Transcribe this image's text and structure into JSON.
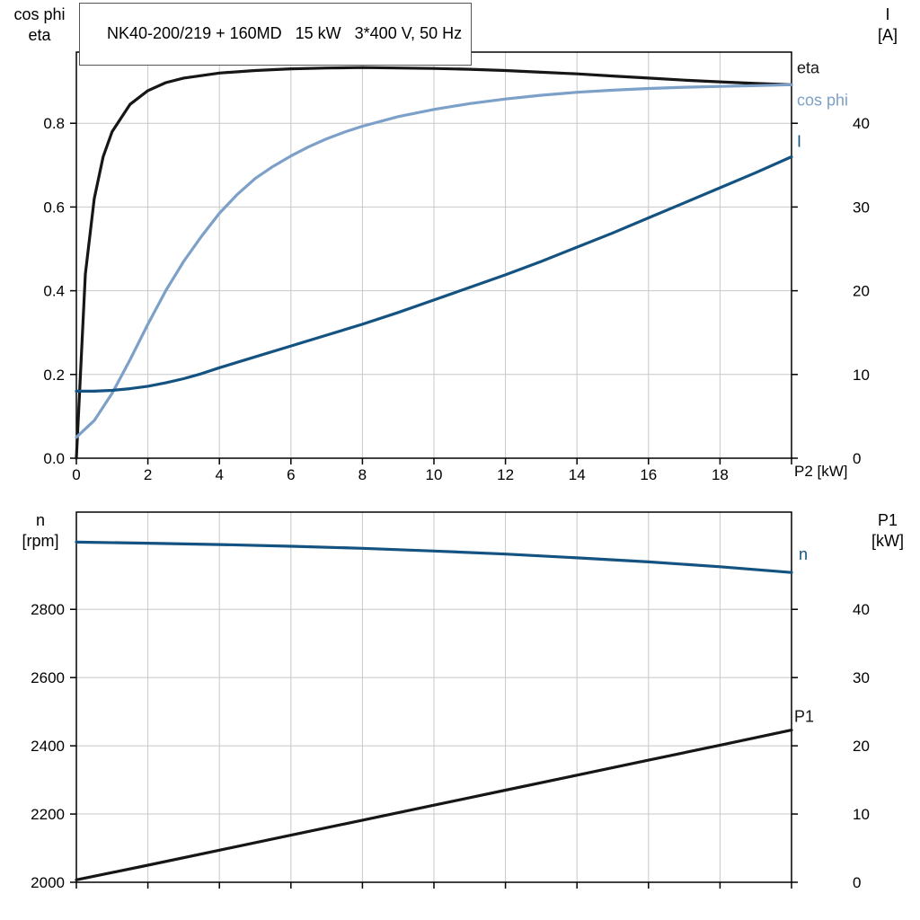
{
  "title": "NK40-200/219 + 160MD   15 kW   3*400 V, 50 Hz",
  "colors": {
    "grid": "#c8c8c8",
    "axis": "#000000",
    "black_curve": "#161616",
    "light_blue": "#7ca0c8",
    "dark_blue": "#145381"
  },
  "chart_data": [
    {
      "type": "line",
      "name": "motor-electrical",
      "x_axis": {
        "label": "P2 [kW]",
        "min": 0,
        "max": 20,
        "ticks": [
          {
            "v": 0,
            "label": "0"
          },
          {
            "v": 2,
            "label": "2"
          },
          {
            "v": 4,
            "label": "4"
          },
          {
            "v": 6,
            "label": "6"
          },
          {
            "v": 8,
            "label": "8"
          },
          {
            "v": 10,
            "label": "10"
          },
          {
            "v": 12,
            "label": "12"
          },
          {
            "v": 14,
            "label": "14"
          },
          {
            "v": 16,
            "label": "16"
          },
          {
            "v": 18,
            "label": "18"
          }
        ]
      },
      "y_left": {
        "name_lines": [
          "cos phi",
          "eta"
        ],
        "min": 0,
        "max": 0.97,
        "ticks": [
          {
            "v": 0,
            "label": "0.0"
          },
          {
            "v": 0.2,
            "label": "0.2"
          },
          {
            "v": 0.4,
            "label": "0.4"
          },
          {
            "v": 0.6,
            "label": "0.6"
          },
          {
            "v": 0.8,
            "label": "0.8"
          }
        ]
      },
      "y_right": {
        "name_lines": [
          "I",
          "[A]"
        ],
        "min": 0,
        "max": 48.5,
        "ticks": [
          {
            "v": 0,
            "label": "0"
          },
          {
            "v": 10,
            "label": "10"
          },
          {
            "v": 20,
            "label": "20"
          },
          {
            "v": 30,
            "label": "30"
          },
          {
            "v": 40,
            "label": "40"
          }
        ]
      },
      "series": [
        {
          "key": "eta",
          "label": "eta",
          "axis": "left",
          "color": "#161616",
          "label_offset": [
            6,
            -13
          ],
          "x": [
            0,
            0.25,
            0.5,
            0.75,
            1,
            1.5,
            2,
            2.5,
            3,
            4,
            5,
            6,
            7,
            8,
            9,
            10,
            11,
            12,
            13,
            14,
            15,
            16,
            17,
            18,
            19,
            20
          ],
          "y": [
            0,
            0.44,
            0.62,
            0.72,
            0.78,
            0.845,
            0.878,
            0.897,
            0.908,
            0.92,
            0.926,
            0.93,
            0.932,
            0.933,
            0.932,
            0.931,
            0.929,
            0.926,
            0.922,
            0.918,
            0.913,
            0.908,
            0.903,
            0.899,
            0.895,
            0.892
          ]
        },
        {
          "key": "cos-phi",
          "label": "cos phi",
          "axis": "left",
          "color": "#7ca0c8",
          "label_offset": [
            6,
            23
          ],
          "x": [
            0,
            0.5,
            1,
            1.5,
            2,
            2.5,
            3,
            3.5,
            4,
            4.5,
            5,
            5.5,
            6,
            6.5,
            7,
            7.5,
            8,
            9,
            10,
            11,
            12,
            13,
            14,
            15,
            16,
            17,
            18,
            19,
            20
          ],
          "y": [
            0.05,
            0.09,
            0.155,
            0.235,
            0.32,
            0.4,
            0.47,
            0.53,
            0.585,
            0.63,
            0.668,
            0.697,
            0.722,
            0.744,
            0.763,
            0.779,
            0.793,
            0.816,
            0.833,
            0.847,
            0.858,
            0.867,
            0.874,
            0.879,
            0.883,
            0.886,
            0.888,
            0.89,
            0.892
          ]
        },
        {
          "key": "current",
          "label": "I",
          "axis": "right",
          "color": "#145381",
          "label_offset": [
            6,
            -11
          ],
          "x": [
            0,
            0.5,
            1,
            1.5,
            2,
            2.5,
            3,
            3.5,
            4,
            5,
            6,
            7,
            8,
            9,
            10,
            11,
            12,
            13,
            14,
            15,
            16,
            17,
            18,
            19,
            20
          ],
          "y": [
            8,
            8,
            8.1,
            8.3,
            8.6,
            9,
            9.5,
            10.1,
            10.8,
            12.1,
            13.4,
            14.7,
            16,
            17.4,
            18.9,
            20.4,
            21.9,
            23.5,
            25.2,
            26.9,
            28.7,
            30.5,
            32.3,
            34.1,
            36
          ]
        }
      ]
    },
    {
      "type": "line",
      "name": "speed-power",
      "x_axis": {
        "label": "",
        "min": 0,
        "max": 20,
        "ticks": [
          {
            "v": 0,
            "label": ""
          },
          {
            "v": 2,
            "label": ""
          },
          {
            "v": 4,
            "label": ""
          },
          {
            "v": 6,
            "label": ""
          },
          {
            "v": 8,
            "label": ""
          },
          {
            "v": 10,
            "label": ""
          },
          {
            "v": 12,
            "label": ""
          },
          {
            "v": 14,
            "label": ""
          },
          {
            "v": 16,
            "label": ""
          },
          {
            "v": 18,
            "label": ""
          }
        ]
      },
      "y_left": {
        "name_lines": [
          "n",
          "[rpm]"
        ],
        "min": 2000,
        "max": 3085,
        "ticks": [
          {
            "v": 2000,
            "label": "2000"
          },
          {
            "v": 2200,
            "label": "2200"
          },
          {
            "v": 2400,
            "label": "2400"
          },
          {
            "v": 2600,
            "label": "2600"
          },
          {
            "v": 2800,
            "label": "2800"
          }
        ]
      },
      "y_right": {
        "name_lines": [
          "P1",
          "[kW]"
        ],
        "min": 0,
        "max": 54.25,
        "ticks": [
          {
            "v": 0,
            "label": "0"
          },
          {
            "v": 10,
            "label": "10"
          },
          {
            "v": 20,
            "label": "20"
          },
          {
            "v": 30,
            "label": "30"
          },
          {
            "v": 40,
            "label": "40"
          }
        ]
      },
      "series": [
        {
          "key": "n",
          "label": "n",
          "axis": "left",
          "color": "#145381",
          "label_offset": [
            8,
            -14
          ],
          "x": [
            0,
            2,
            4,
            6,
            8,
            10,
            12,
            14,
            16,
            18,
            20
          ],
          "y": [
            2997,
            2994,
            2990,
            2985,
            2979,
            2971,
            2962,
            2951,
            2939,
            2925,
            2908
          ]
        },
        {
          "key": "p1",
          "label": "P1",
          "axis": "right",
          "color": "#161616",
          "label_offset": [
            3,
            -9
          ],
          "x": [
            0,
            2,
            4,
            6,
            8,
            10,
            12,
            14,
            16,
            18,
            20
          ],
          "y": [
            0.35,
            2.5,
            4.7,
            6.9,
            9.1,
            11.3,
            13.5,
            15.7,
            17.9,
            20.1,
            22.3
          ]
        }
      ]
    }
  ]
}
